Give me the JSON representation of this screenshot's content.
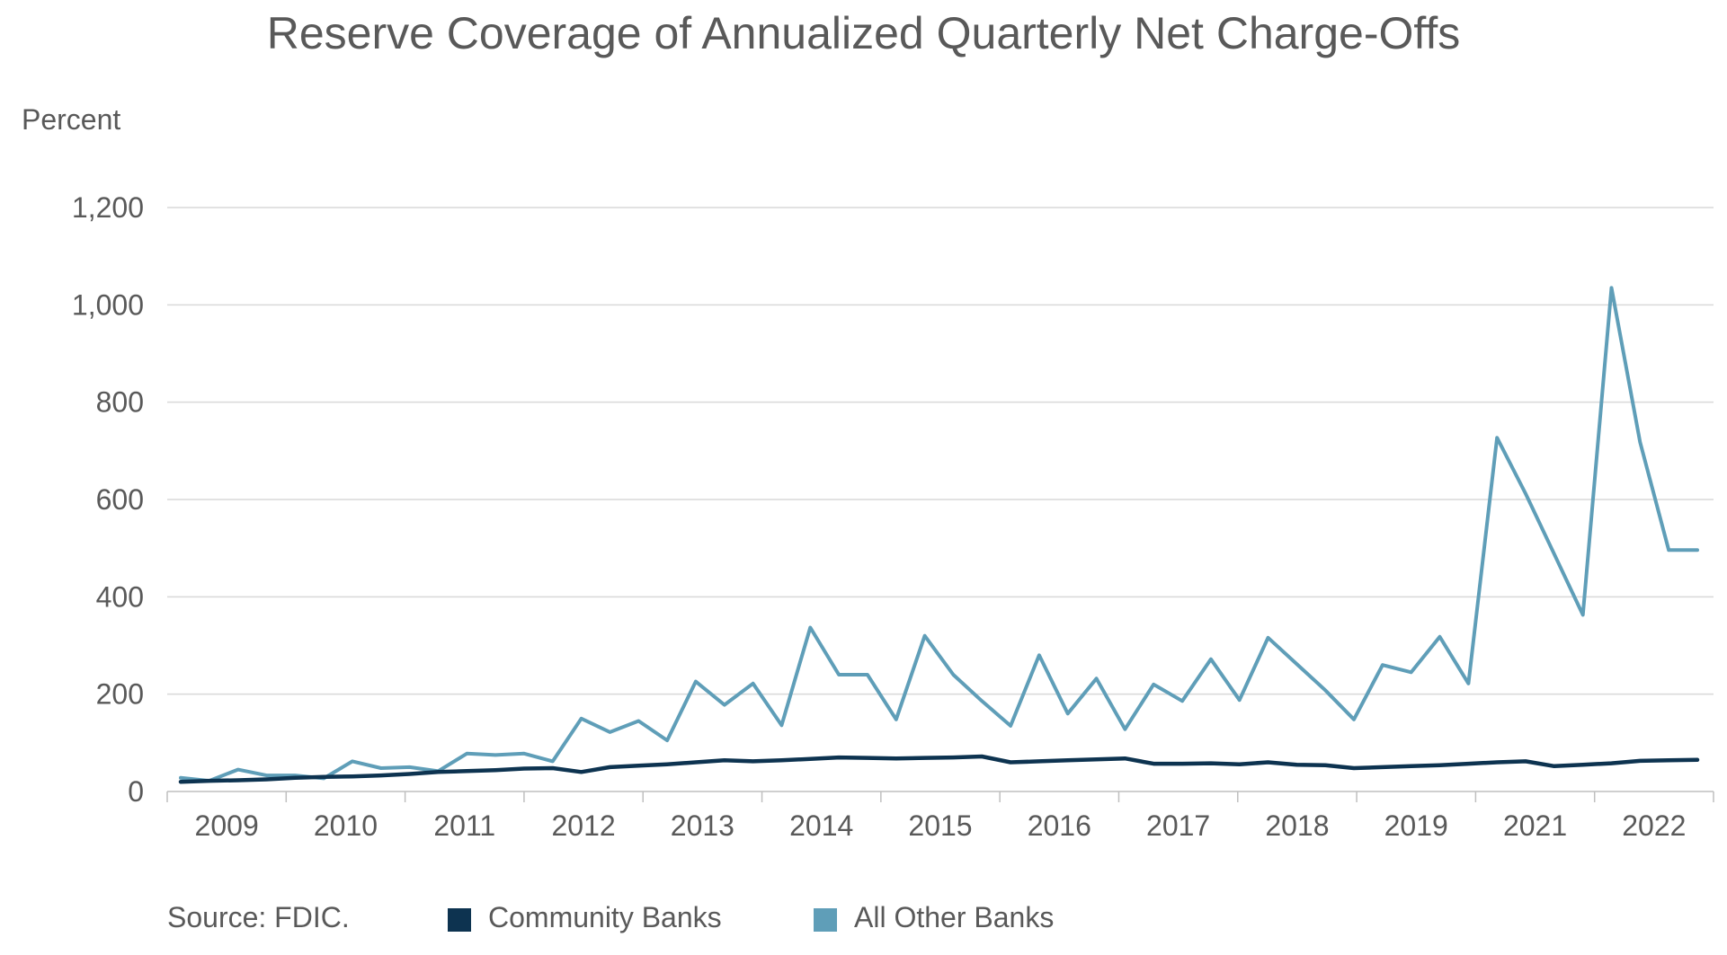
{
  "chart_data": {
    "type": "line",
    "title": "Reserve Coverage of Annualized Quarterly Net Charge-Offs",
    "ylabel": "Percent",
    "xlabel": "",
    "ylim": [
      0,
      1200
    ],
    "yticks": [
      0,
      200,
      400,
      600,
      800,
      1000,
      1200
    ],
    "ytick_labels": [
      "0",
      "200",
      "400",
      "600",
      "800",
      "1,000",
      "1,200"
    ],
    "x_tick_labels": [
      "2009",
      "2010",
      "2011",
      "2012",
      "2013",
      "2014",
      "2015",
      "2016",
      "2017",
      "2018",
      "2019",
      "2021",
      "2022"
    ],
    "grid": true,
    "legend_position": "bottom",
    "x": [
      "2008Q4",
      "2009Q1",
      "2009Q2",
      "2009Q3",
      "2009Q4",
      "2010Q1",
      "2010Q2",
      "2010Q3",
      "2010Q4",
      "2011Q1",
      "2011Q2",
      "2011Q3",
      "2011Q4",
      "2012Q1",
      "2012Q2",
      "2012Q3",
      "2012Q4",
      "2013Q1",
      "2013Q2",
      "2013Q3",
      "2013Q4",
      "2014Q1",
      "2014Q2",
      "2014Q3",
      "2014Q4",
      "2015Q1",
      "2015Q2",
      "2015Q3",
      "2015Q4",
      "2016Q1",
      "2016Q2",
      "2016Q3",
      "2016Q4",
      "2017Q1",
      "2017Q2",
      "2017Q3",
      "2017Q4",
      "2018Q1",
      "2018Q2",
      "2018Q3",
      "2018Q4",
      "2019Q1",
      "2019Q2",
      "2019Q3",
      "2019Q4",
      "2020Q1",
      "2020Q2",
      "2020Q3",
      "2020Q4",
      "2021Q1",
      "2021Q2",
      "2021Q3",
      "2021Q4",
      "2022Q1"
    ],
    "series": [
      {
        "name": "Community Banks",
        "color": "#0d3350",
        "values": [
          20,
          22,
          23,
          25,
          28,
          30,
          31,
          33,
          36,
          40,
          42,
          44,
          47,
          48,
          40,
          50,
          53,
          56,
          60,
          64,
          62,
          64,
          67,
          70,
          69,
          68,
          69,
          70,
          72,
          60,
          62,
          64,
          66,
          68,
          57,
          57,
          58,
          56,
          60,
          55,
          54,
          48,
          50,
          52,
          54,
          57,
          60,
          62,
          52,
          55,
          58,
          63,
          64,
          65
        ]
      },
      {
        "name": "All Other Banks",
        "color": "#5f9eb8",
        "values": [
          28,
          22,
          45,
          33,
          33,
          27,
          62,
          48,
          50,
          42,
          78,
          75,
          78,
          62,
          150,
          122,
          145,
          105,
          226,
          178,
          222,
          136,
          337,
          240,
          240,
          148,
          320,
          240,
          186,
          135,
          280,
          160,
          232,
          128,
          220,
          186,
          272,
          188,
          316,
          262,
          208,
          148,
          260,
          245,
          318,
          222,
          727,
          612,
          488,
          363,
          1035,
          718,
          496,
          496
        ]
      }
    ]
  },
  "footer": {
    "source": "Source: FDIC.",
    "legend_community": "Community Banks",
    "legend_other": "All Other Banks"
  }
}
